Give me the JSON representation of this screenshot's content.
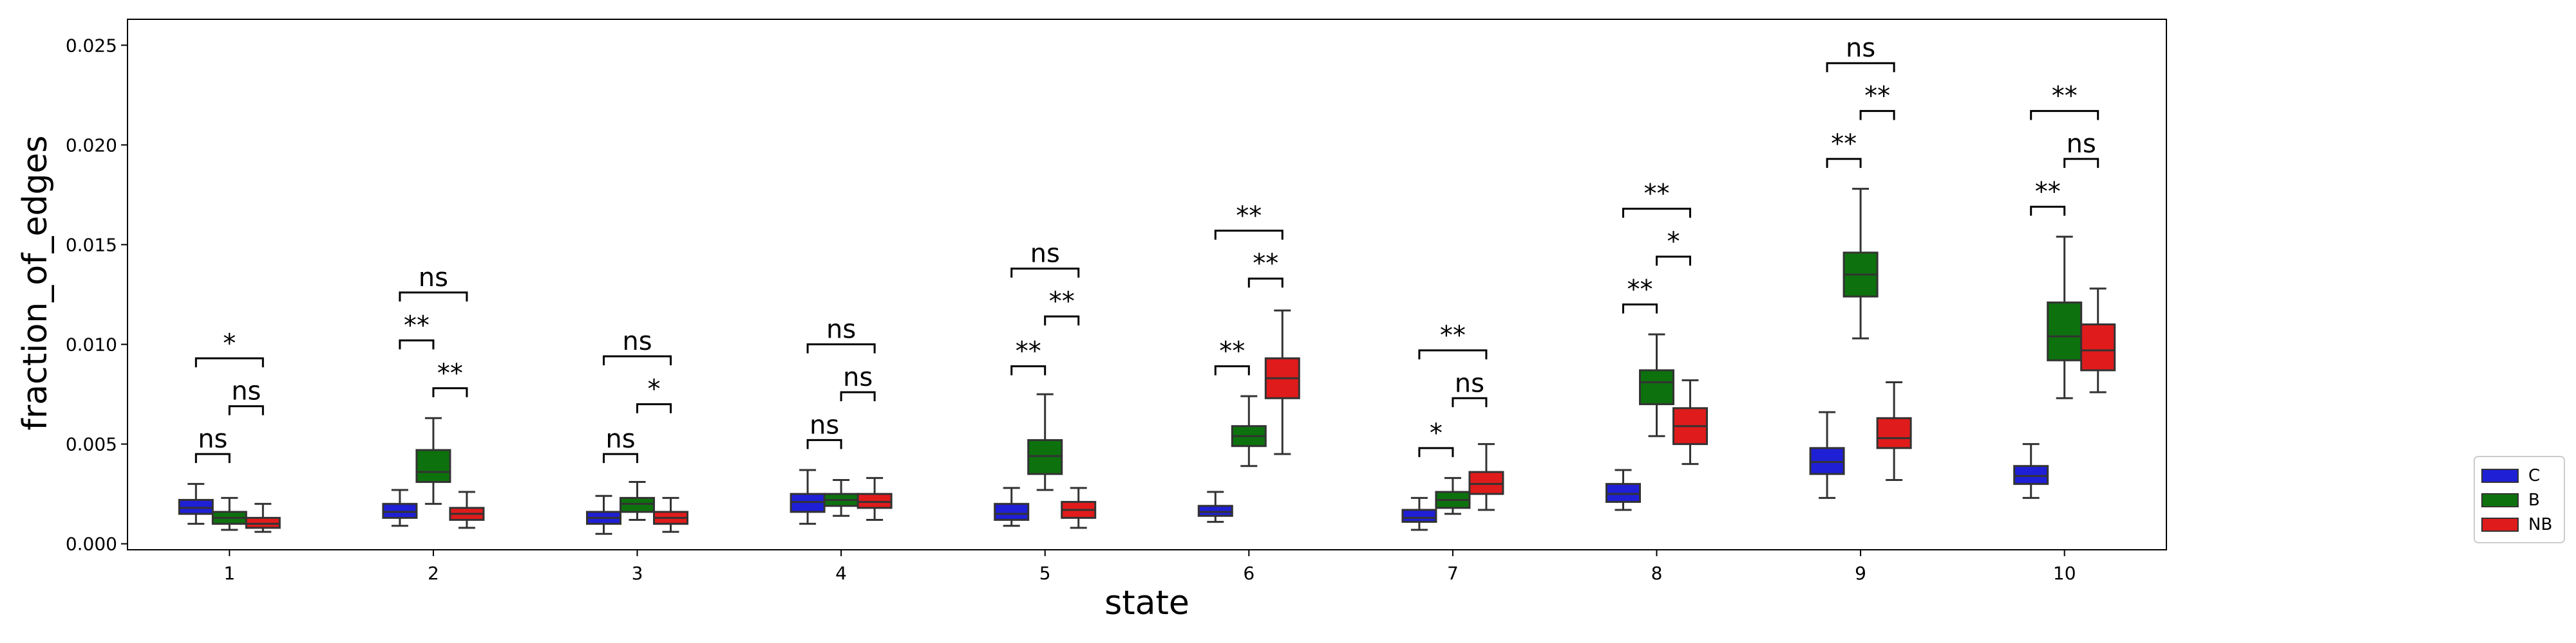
{
  "chart_data": {
    "type": "box",
    "xlabel": "state",
    "ylabel": "fraction_of_edges",
    "categories": [
      "1",
      "2",
      "3",
      "4",
      "5",
      "6",
      "7",
      "8",
      "9",
      "10"
    ],
    "ylim": [
      -0.0003,
      0.0263
    ],
    "yticks": [
      0.0,
      0.005,
      0.01,
      0.015,
      0.02,
      0.025
    ],
    "ytick_labels": [
      "0.000",
      "0.005",
      "0.010",
      "0.015",
      "0.020",
      "0.025"
    ],
    "grid": false,
    "legend_position": "outside-right-bottom",
    "series": [
      {
        "name": "C",
        "color": "#1f1fd6",
        "boxes": [
          {
            "whislo": 0.001,
            "q1": 0.0015,
            "med": 0.0018,
            "q3": 0.0022,
            "whishi": 0.003
          },
          {
            "whislo": 0.0009,
            "q1": 0.0013,
            "med": 0.0016,
            "q3": 0.002,
            "whishi": 0.0027
          },
          {
            "whislo": 0.0005,
            "q1": 0.001,
            "med": 0.0013,
            "q3": 0.0016,
            "whishi": 0.0024
          },
          {
            "whislo": 0.001,
            "q1": 0.0016,
            "med": 0.0021,
            "q3": 0.0025,
            "whishi": 0.0037
          },
          {
            "whislo": 0.0009,
            "q1": 0.0012,
            "med": 0.0015,
            "q3": 0.002,
            "whishi": 0.0028
          },
          {
            "whislo": 0.0011,
            "q1": 0.0014,
            "med": 0.0016,
            "q3": 0.0019,
            "whishi": 0.0026
          },
          {
            "whislo": 0.0007,
            "q1": 0.0011,
            "med": 0.0013,
            "q3": 0.0017,
            "whishi": 0.0023
          },
          {
            "whislo": 0.0017,
            "q1": 0.0021,
            "med": 0.0025,
            "q3": 0.003,
            "whishi": 0.0037
          },
          {
            "whislo": 0.0023,
            "q1": 0.0035,
            "med": 0.0041,
            "q3": 0.0048,
            "whishi": 0.0066
          },
          {
            "whislo": 0.0023,
            "q1": 0.003,
            "med": 0.0034,
            "q3": 0.0039,
            "whishi": 0.005
          }
        ]
      },
      {
        "name": "B",
        "color": "#0d720d",
        "boxes": [
          {
            "whislo": 0.0007,
            "q1": 0.001,
            "med": 0.0013,
            "q3": 0.0016,
            "whishi": 0.0023
          },
          {
            "whislo": 0.002,
            "q1": 0.0031,
            "med": 0.0036,
            "q3": 0.0047,
            "whishi": 0.0063
          },
          {
            "whislo": 0.0012,
            "q1": 0.0016,
            "med": 0.002,
            "q3": 0.0023,
            "whishi": 0.0031
          },
          {
            "whislo": 0.0014,
            "q1": 0.0019,
            "med": 0.0022,
            "q3": 0.0025,
            "whishi": 0.0032
          },
          {
            "whislo": 0.0027,
            "q1": 0.0035,
            "med": 0.0044,
            "q3": 0.0052,
            "whishi": 0.0075
          },
          {
            "whislo": 0.0039,
            "q1": 0.0049,
            "med": 0.0054,
            "q3": 0.0059,
            "whishi": 0.0074
          },
          {
            "whislo": 0.0015,
            "q1": 0.0018,
            "med": 0.0022,
            "q3": 0.0026,
            "whishi": 0.0033
          },
          {
            "whislo": 0.0054,
            "q1": 0.007,
            "med": 0.0081,
            "q3": 0.0087,
            "whishi": 0.0105
          },
          {
            "whislo": 0.0103,
            "q1": 0.0124,
            "med": 0.0135,
            "q3": 0.0146,
            "whishi": 0.0178
          },
          {
            "whislo": 0.0073,
            "q1": 0.0092,
            "med": 0.0104,
            "q3": 0.0121,
            "whishi": 0.0154
          }
        ]
      },
      {
        "name": "NB",
        "color": "#e01b1b",
        "boxes": [
          {
            "whislo": 0.0006,
            "q1": 0.0008,
            "med": 0.001,
            "q3": 0.0013,
            "whishi": 0.002
          },
          {
            "whislo": 0.0008,
            "q1": 0.0012,
            "med": 0.0015,
            "q3": 0.0018,
            "whishi": 0.0026
          },
          {
            "whislo": 0.0006,
            "q1": 0.001,
            "med": 0.0013,
            "q3": 0.0016,
            "whishi": 0.0023
          },
          {
            "whislo": 0.0012,
            "q1": 0.0018,
            "med": 0.0021,
            "q3": 0.0025,
            "whishi": 0.0033
          },
          {
            "whislo": 0.0008,
            "q1": 0.0013,
            "med": 0.0017,
            "q3": 0.0021,
            "whishi": 0.0028
          },
          {
            "whislo": 0.0045,
            "q1": 0.0073,
            "med": 0.0083,
            "q3": 0.0093,
            "whishi": 0.0117
          },
          {
            "whislo": 0.0017,
            "q1": 0.0025,
            "med": 0.003,
            "q3": 0.0036,
            "whishi": 0.005
          },
          {
            "whislo": 0.004,
            "q1": 0.005,
            "med": 0.0059,
            "q3": 0.0068,
            "whishi": 0.0082
          },
          {
            "whislo": 0.0032,
            "q1": 0.0048,
            "med": 0.0053,
            "q3": 0.0063,
            "whishi": 0.0081
          },
          {
            "whislo": 0.0076,
            "q1": 0.0087,
            "med": 0.0097,
            "q3": 0.011,
            "whishi": 0.0128
          }
        ]
      }
    ],
    "significance": [
      {
        "group": 0,
        "from": "C",
        "to": "B",
        "y": 0.0045,
        "label": "ns"
      },
      {
        "group": 0,
        "from": "B",
        "to": "NB",
        "y": 0.0069,
        "label": "ns"
      },
      {
        "group": 0,
        "from": "C",
        "to": "NB",
        "y": 0.0093,
        "label": "*"
      },
      {
        "group": 1,
        "from": "C",
        "to": "B",
        "y": 0.0102,
        "label": "**"
      },
      {
        "group": 1,
        "from": "B",
        "to": "NB",
        "y": 0.0078,
        "label": "**"
      },
      {
        "group": 1,
        "from": "C",
        "to": "NB",
        "y": 0.0126,
        "label": "ns"
      },
      {
        "group": 2,
        "from": "C",
        "to": "B",
        "y": 0.0045,
        "label": "ns"
      },
      {
        "group": 2,
        "from": "B",
        "to": "NB",
        "y": 0.007,
        "label": "*"
      },
      {
        "group": 2,
        "from": "C",
        "to": "NB",
        "y": 0.0094,
        "label": "ns"
      },
      {
        "group": 3,
        "from": "C",
        "to": "B",
        "y": 0.0052,
        "label": "ns"
      },
      {
        "group": 3,
        "from": "B",
        "to": "NB",
        "y": 0.0076,
        "label": "ns"
      },
      {
        "group": 3,
        "from": "C",
        "to": "NB",
        "y": 0.01,
        "label": "ns"
      },
      {
        "group": 4,
        "from": "C",
        "to": "B",
        "y": 0.0089,
        "label": "**"
      },
      {
        "group": 4,
        "from": "B",
        "to": "NB",
        "y": 0.0114,
        "label": "**"
      },
      {
        "group": 4,
        "from": "C",
        "to": "NB",
        "y": 0.0138,
        "label": "ns"
      },
      {
        "group": 5,
        "from": "C",
        "to": "B",
        "y": 0.0089,
        "label": "**"
      },
      {
        "group": 5,
        "from": "B",
        "to": "NB",
        "y": 0.0133,
        "label": "**"
      },
      {
        "group": 5,
        "from": "C",
        "to": "NB",
        "y": 0.0157,
        "label": "**"
      },
      {
        "group": 6,
        "from": "C",
        "to": "B",
        "y": 0.0048,
        "label": "*"
      },
      {
        "group": 6,
        "from": "B",
        "to": "NB",
        "y": 0.0073,
        "label": "ns"
      },
      {
        "group": 6,
        "from": "C",
        "to": "NB",
        "y": 0.0097,
        "label": "**"
      },
      {
        "group": 7,
        "from": "C",
        "to": "B",
        "y": 0.012,
        "label": "**"
      },
      {
        "group": 7,
        "from": "B",
        "to": "NB",
        "y": 0.0144,
        "label": "*"
      },
      {
        "group": 7,
        "from": "C",
        "to": "NB",
        "y": 0.0168,
        "label": "**"
      },
      {
        "group": 8,
        "from": "C",
        "to": "B",
        "y": 0.0193,
        "label": "**"
      },
      {
        "group": 8,
        "from": "B",
        "to": "NB",
        "y": 0.0217,
        "label": "**"
      },
      {
        "group": 8,
        "from": "C",
        "to": "NB",
        "y": 0.0241,
        "label": "ns"
      },
      {
        "group": 9,
        "from": "C",
        "to": "B",
        "y": 0.0169,
        "label": "**"
      },
      {
        "group": 9,
        "from": "B",
        "to": "NB",
        "y": 0.0193,
        "label": "ns"
      },
      {
        "group": 9,
        "from": "C",
        "to": "NB",
        "y": 0.0217,
        "label": "**"
      }
    ]
  }
}
